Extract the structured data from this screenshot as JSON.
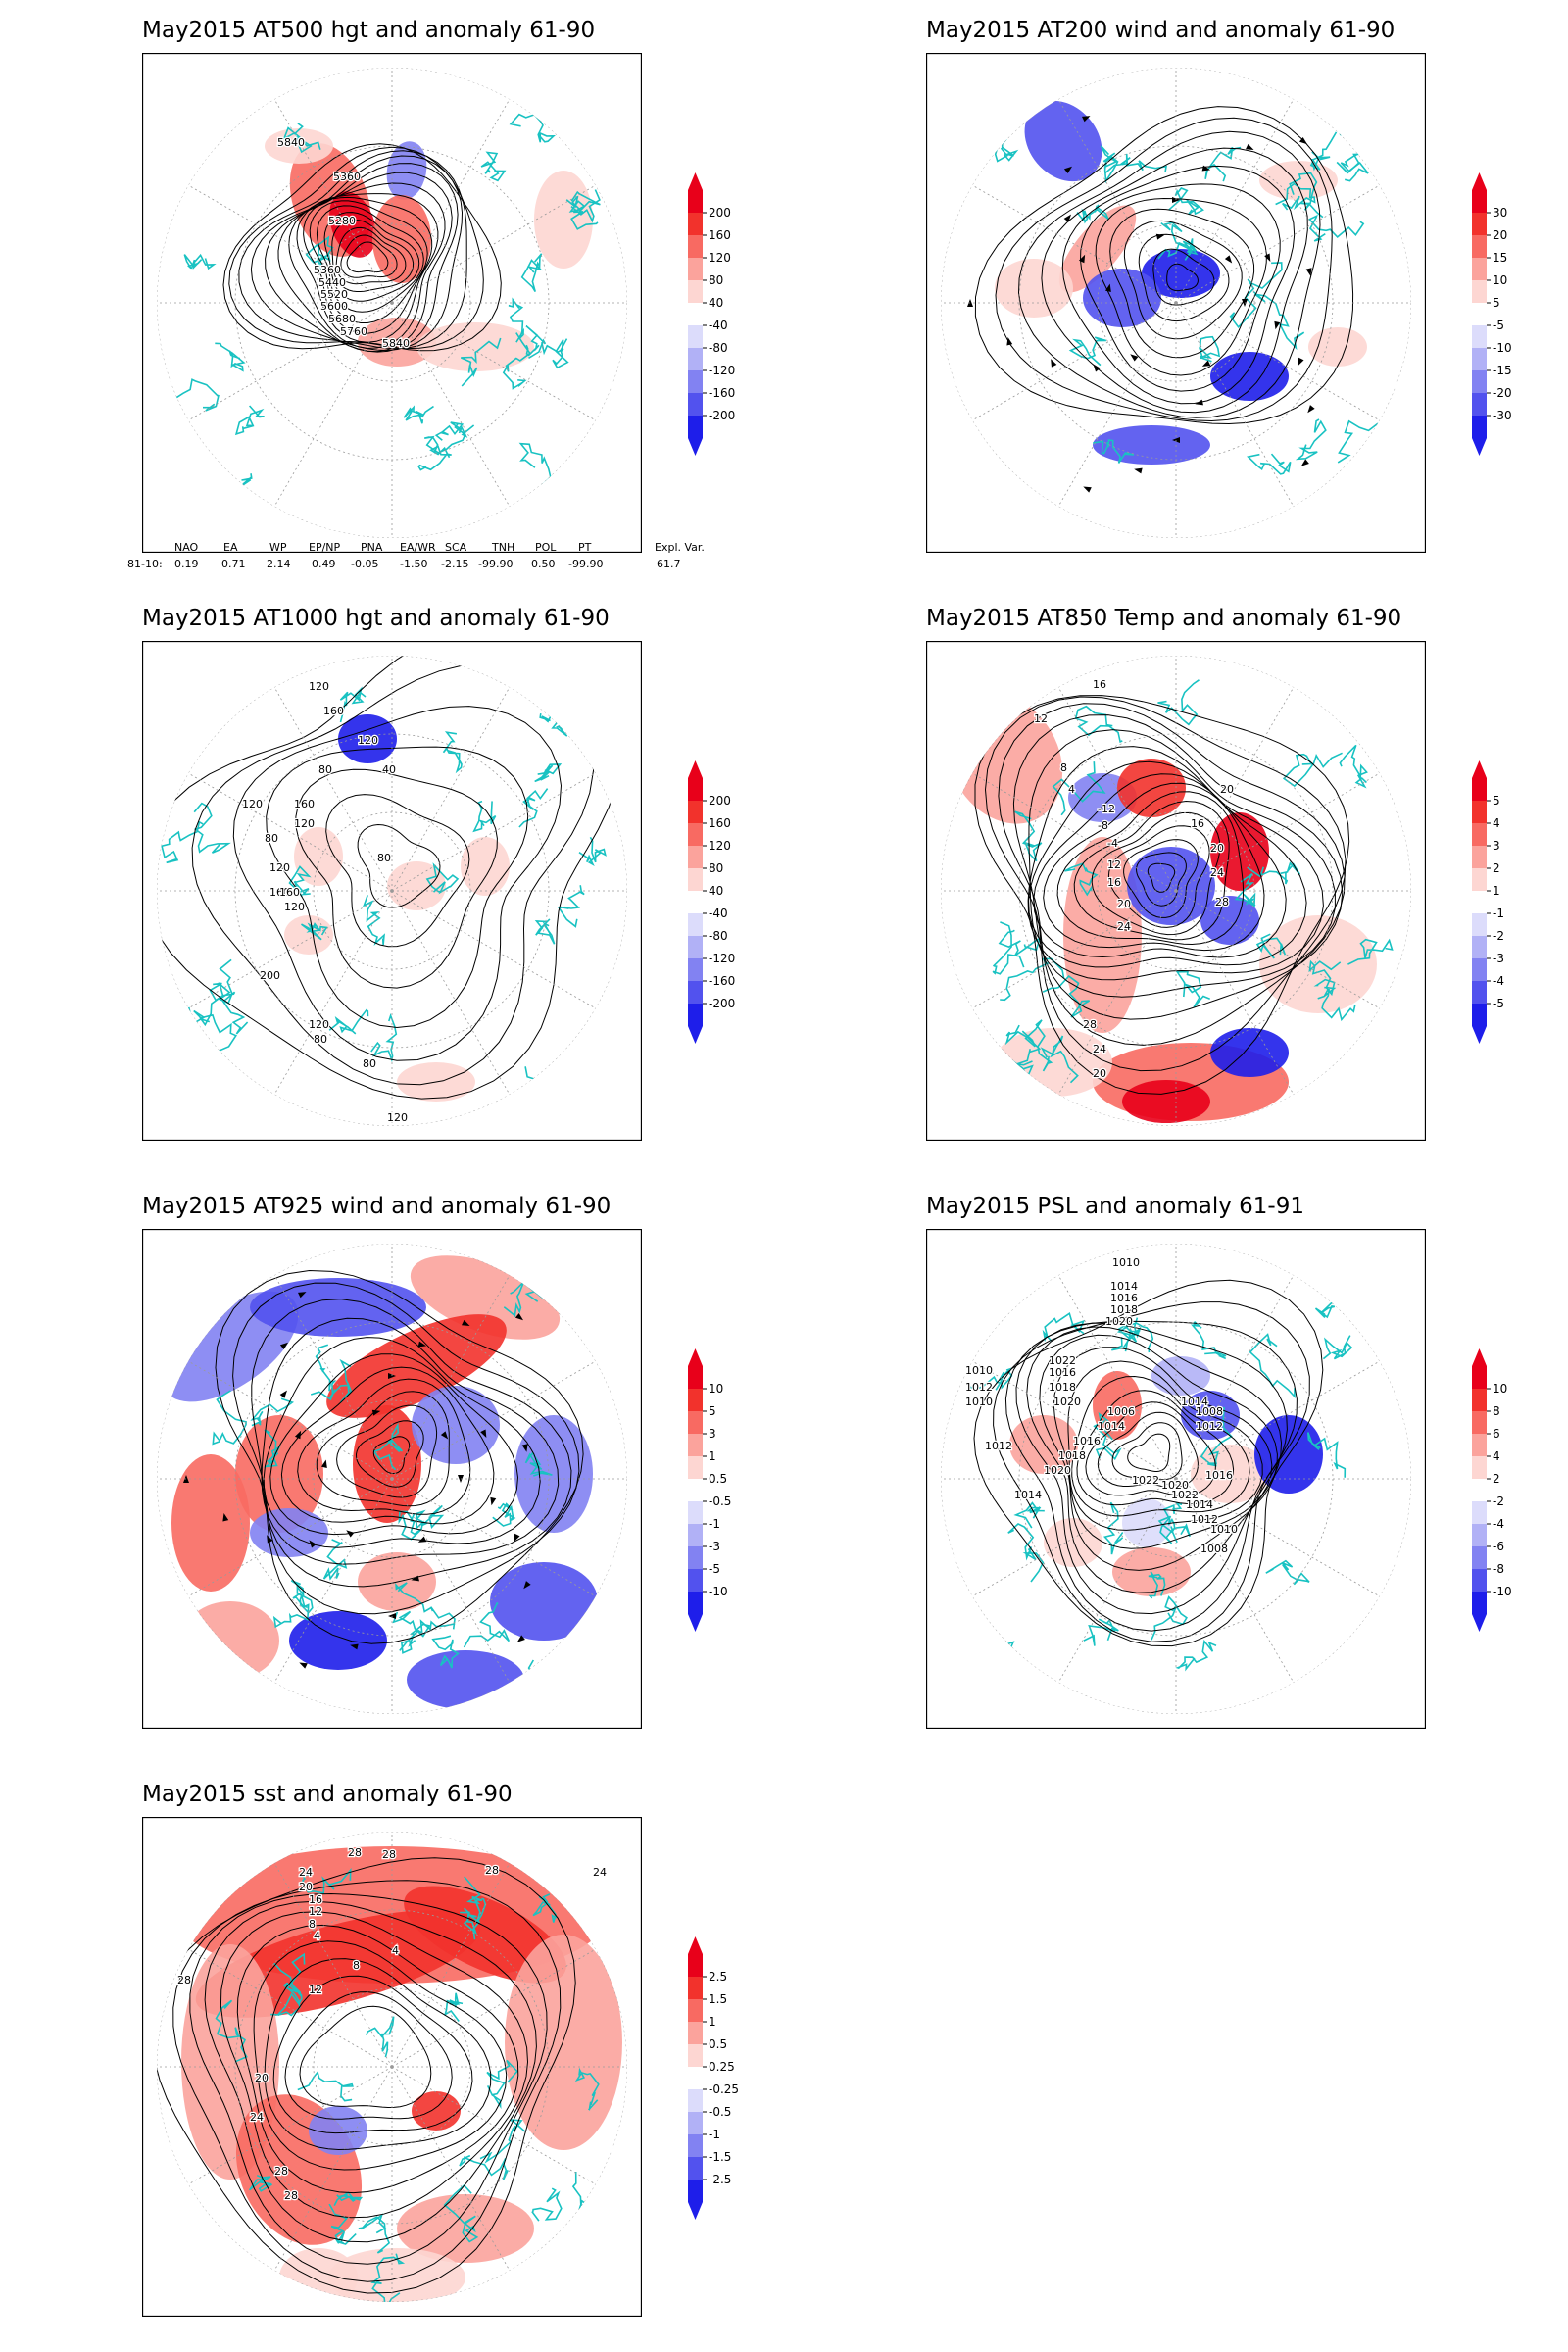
{
  "panels": [
    {
      "id": "at500",
      "title": "May2015 AT500 hgt and anomaly 61-90",
      "colorbar": [
        "200",
        "160",
        "120",
        "80",
        "40",
        "-40",
        "-80",
        "-120",
        "-160",
        "-200"
      ],
      "contour_labels": [
        "5840",
        "5360",
        "5280",
        "5360",
        "5440",
        "5520",
        "5600",
        "5680",
        "5760",
        "5840"
      ]
    },
    {
      "id": "at200",
      "title": "May2015 AT200 wind and anomaly 61-90",
      "colorbar": [
        "30",
        "20",
        "15",
        "10",
        "5",
        "-5",
        "-10",
        "-15",
        "-20",
        "-30"
      ],
      "contour_labels": []
    },
    {
      "id": "at1000",
      "title": "May2015 AT1000 hgt and anomaly 61-90",
      "colorbar": [
        "200",
        "160",
        "120",
        "80",
        "40",
        "-40",
        "-80",
        "-120",
        "-160",
        "-200"
      ],
      "contour_labels": [
        "120",
        "160",
        "120",
        "80",
        "40",
        "160",
        "120",
        "80",
        "120",
        "160",
        "120",
        "80",
        "200",
        "120",
        "160",
        "120",
        "80",
        "80",
        "120"
      ]
    },
    {
      "id": "at850",
      "title": "May2015 AT850 Temp and anomaly 61-90",
      "colorbar": [
        "5",
        "4",
        "3",
        "2",
        "1",
        "-1",
        "-2",
        "-3",
        "-4",
        "-5"
      ],
      "contour_labels": [
        "16",
        "12",
        "8",
        "4",
        "20",
        "16",
        "20",
        "24",
        "28",
        "-12",
        "-8",
        "-4",
        "12",
        "16",
        "20",
        "24",
        "28",
        "24",
        "20"
      ]
    },
    {
      "id": "at925",
      "title": "May2015 AT925 wind and anomaly 61-90",
      "colorbar": [
        "10",
        "5",
        "3",
        "1",
        "0.5",
        "-0.5",
        "-1",
        "-3",
        "-5",
        "-10"
      ],
      "contour_labels": []
    },
    {
      "id": "psl",
      "title": "May2015 PSL and anomaly 61-91",
      "colorbar": [
        "10",
        "8",
        "6",
        "4",
        "2",
        "-2",
        "-4",
        "-6",
        "-8",
        "-10"
      ],
      "contour_labels": [
        "1010",
        "1014",
        "1016",
        "1018",
        "1020",
        "1010",
        "1012",
        "1010",
        "1022",
        "1016",
        "1018",
        "1020",
        "1012",
        "1006",
        "1014",
        "1016",
        "1018",
        "1020",
        "1022",
        "1014",
        "1008",
        "1012",
        "1016",
        "1020",
        "1022",
        "1014",
        "1012",
        "1010",
        "1008",
        "1014"
      ]
    },
    {
      "id": "sst",
      "title": "May2015 sst and anomaly 61-90",
      "colorbar": [
        "2.5",
        "1.5",
        "1",
        "0.5",
        "0.25",
        "-0.25",
        "-0.5",
        "-1",
        "-1.5",
        "-2.5"
      ],
      "contour_labels": [
        "28",
        "28",
        "24",
        "20",
        "16",
        "12",
        "8",
        "4",
        "28",
        "24",
        "28",
        "4",
        "8",
        "12",
        "20",
        "24",
        "28",
        "28"
      ]
    }
  ],
  "teleconnection": {
    "headers": [
      "NAO",
      "EA",
      "WP",
      "EP/NP",
      "PNA",
      "EA/WR",
      "SCA",
      "TNH",
      "POL",
      "PT",
      "Expl. Var."
    ],
    "row_label": "81-10:",
    "values": [
      "0.19",
      "0.71",
      "2.14",
      "0.49",
      "-0.05",
      "-1.50",
      "-2.15",
      "-99.90",
      "0.50",
      "-99.90",
      "61.7"
    ]
  },
  "colors": {
    "red_scale": [
      "#e8001a",
      "#f2322c",
      "#f86a62",
      "#fba39c",
      "#fdd6d2"
    ],
    "blue_scale": [
      "#dcdcfb",
      "#b1b1f6",
      "#8282f2",
      "#5252ee",
      "#1e1eea"
    ],
    "coast": "#19c2c2",
    "contour": "#000000"
  }
}
